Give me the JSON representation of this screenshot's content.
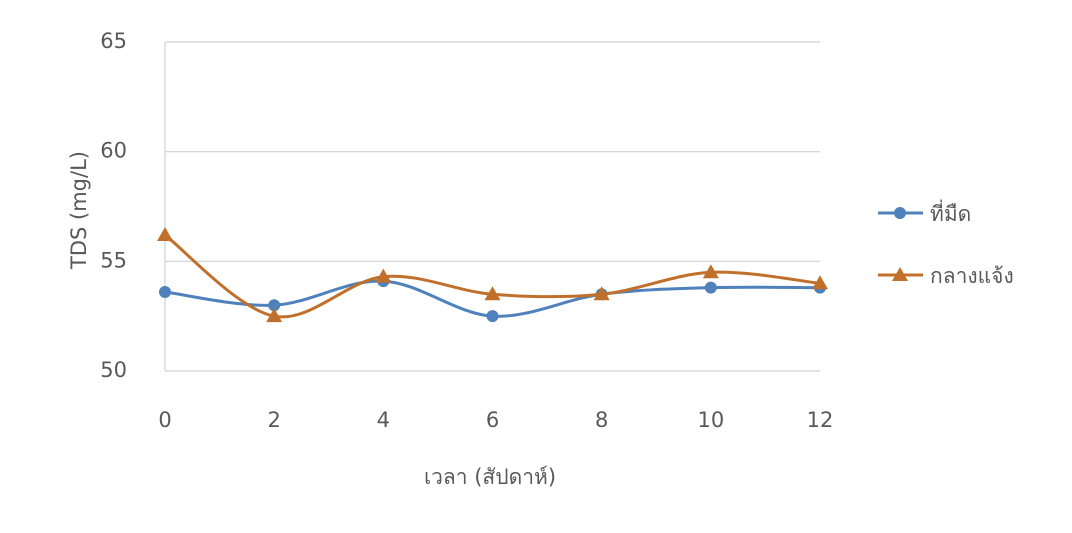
{
  "chart_data": {
    "type": "line",
    "x_label": "เวลา (สัปดาห์)",
    "y_label": "TDS (mg/L)",
    "x": [
      0,
      2,
      4,
      6,
      8,
      10,
      12
    ],
    "xlim": [
      0,
      12
    ],
    "xticks": [
      0,
      2,
      4,
      6,
      8,
      10,
      12
    ],
    "ylim": [
      50,
      65
    ],
    "yticks": [
      50,
      55,
      60,
      65
    ],
    "grid": true,
    "smooth": true,
    "legend": "right",
    "series": [
      {
        "name": "ที่มืด",
        "color": "#4f81bd",
        "marker": "circle",
        "values": [
          53.6,
          53.0,
          54.1,
          52.5,
          53.5,
          53.8,
          53.8
        ]
      },
      {
        "name": "กลางแจ้ง",
        "color": "#c0702a",
        "marker": "triangle",
        "values": [
          56.2,
          52.5,
          54.3,
          53.5,
          53.5,
          54.5,
          54.0
        ]
      }
    ]
  }
}
